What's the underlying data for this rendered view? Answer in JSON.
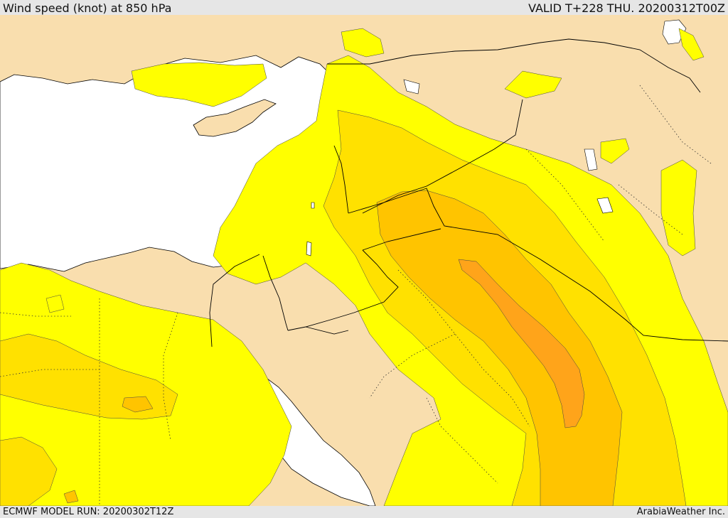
{
  "header": {
    "title": "Wind speed (knot) at 850 hPa",
    "valid_time": "VALID T+228 THU. 20200312T00Z"
  },
  "footer": {
    "model_run": "ECMWF MODEL RUN: 20200302T12Z",
    "credit": "ArabiaWeather Inc."
  },
  "colors": {
    "land": "#f9deae",
    "sea": "#ffffff",
    "band_1": "#ffff00",
    "band_2": "#ffe100",
    "band_3": "#ffc400",
    "band_4": "#ffa41a",
    "boundary": "#000000"
  }
}
